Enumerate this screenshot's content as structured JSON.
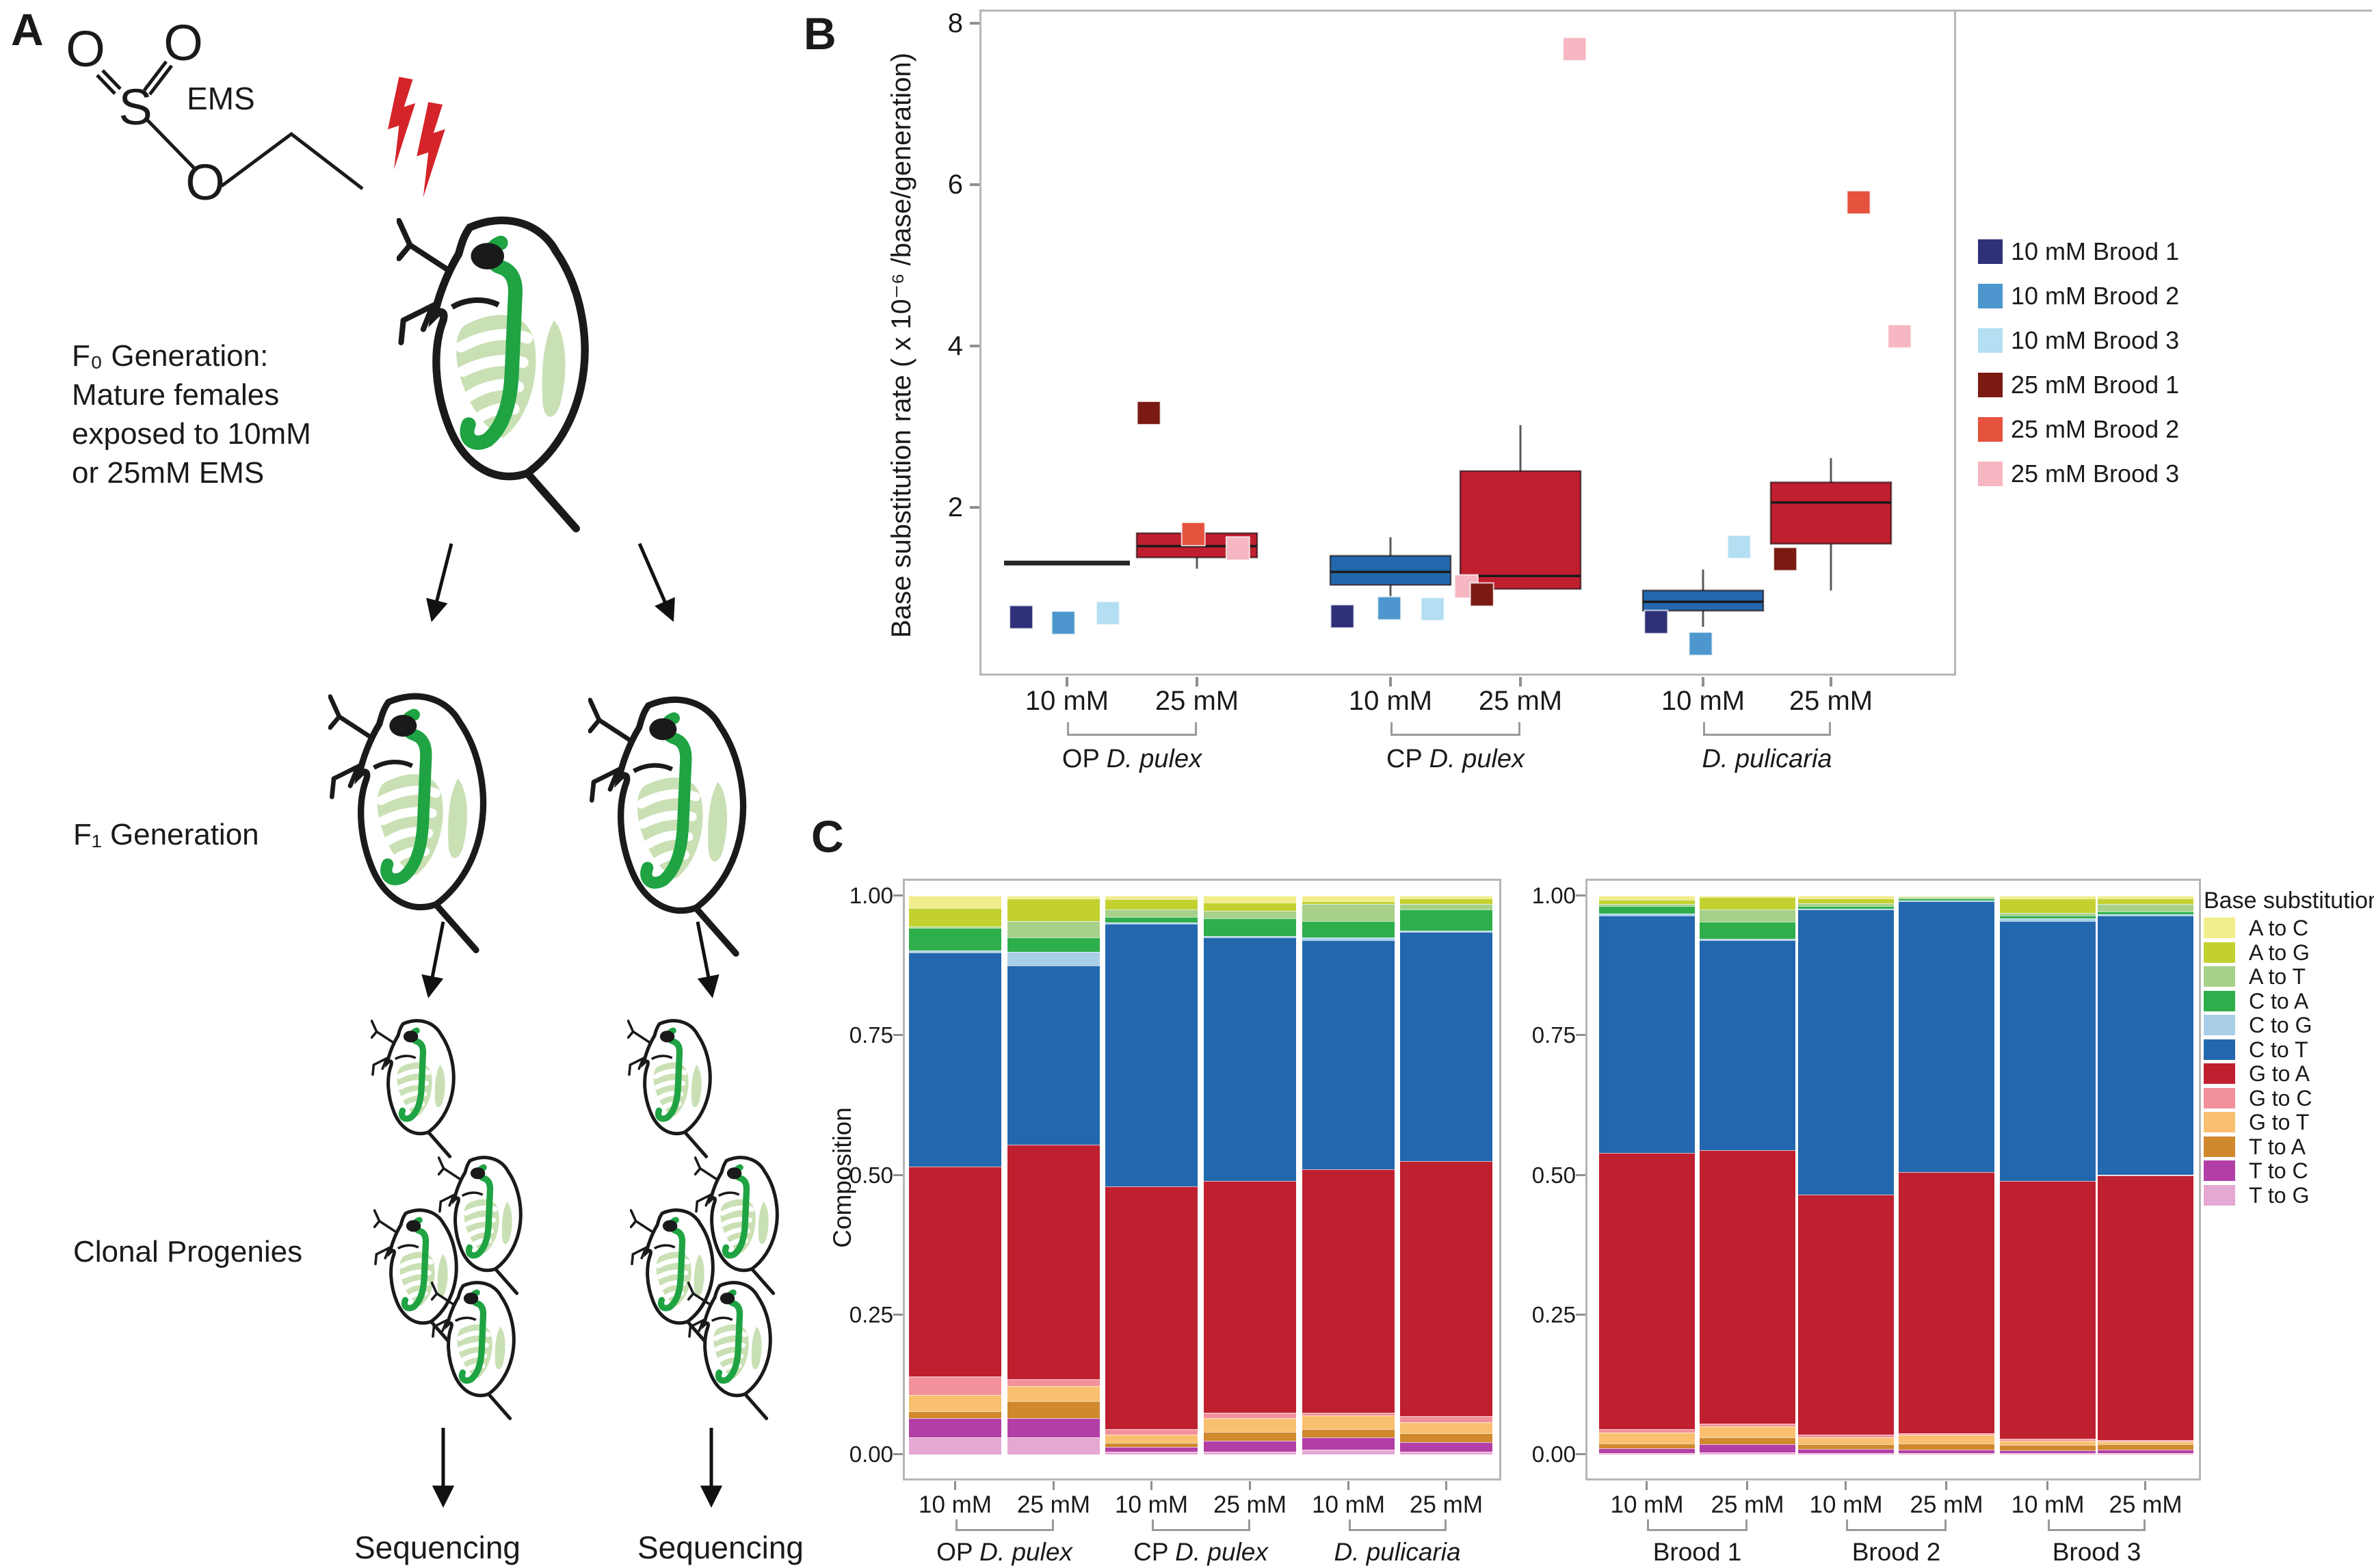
{
  "panelA": {
    "label": "A",
    "molecule": {
      "name": "EMS",
      "atoms": [
        "O",
        "O",
        "S",
        "O"
      ]
    },
    "f0_text_lines": [
      "F₀ Generation:",
      "Mature females",
      "exposed to 10mM",
      "or 25mM EMS"
    ],
    "f1_label": "F₁ Generation",
    "clonal_label": "Clonal Progenies",
    "sequencing_label": "Sequencing",
    "colors": {
      "outline": "#1a1a1a",
      "gut_green": "#1fa343",
      "gill_green": "#c9e0b4",
      "bolt_red": "#d42429"
    }
  },
  "panelB": {
    "label": "B"
  },
  "panelC": {
    "label": "C"
  },
  "legendC": {
    "title": "Base substitution",
    "entries": [
      {
        "label": "A to C",
        "color": "#f1ed8b"
      },
      {
        "label": "A to G",
        "color": "#c3d130"
      },
      {
        "label": "A to T",
        "color": "#a7d189"
      },
      {
        "label": "C to A",
        "color": "#2fae4c"
      },
      {
        "label": "C to G",
        "color": "#a9cfe8"
      },
      {
        "label": "C to T",
        "color": "#2368ae"
      },
      {
        "label": "G to A",
        "color": "#be2030"
      },
      {
        "label": "G to C",
        "color": "#f2919b"
      },
      {
        "label": "G to T",
        "color": "#f9c06f"
      },
      {
        "label": "T to A",
        "color": "#d0892d"
      },
      {
        "label": "T to C",
        "color": "#b23fa6"
      },
      {
        "label": "T to G",
        "color": "#e5a8d3"
      }
    ]
  },
  "chart_data": [
    {
      "id": "base_substitution_rate_boxplot",
      "type": "box",
      "panel": "B",
      "ylabel": "Base substitution rate ( x 10⁻⁶ /base/generation)",
      "ylim": [
        0,
        8
      ],
      "yticks": [
        2,
        4,
        6,
        8
      ],
      "grid": false,
      "legend_position": "right",
      "legend": [
        {
          "label": "10 mM Brood 1",
          "color": "#2e3178"
        },
        {
          "label": "10 mM Brood 2",
          "color": "#4d97ce"
        },
        {
          "label": "10 mM Brood 3",
          "color": "#b4dff2"
        },
        {
          "label": "25 mM Brood 1",
          "color": "#7a1a12"
        },
        {
          "label": "25 mM Brood 2",
          "color": "#e5523e"
        },
        {
          "label": "25 mM Brood 3",
          "color": "#f6b6c2"
        }
      ],
      "box_colors": {
        "10 mM": "#2368ae",
        "25 mM": "#bf1f2f"
      },
      "species": [
        {
          "prefix": "OP ",
          "italic": "D. pulex"
        },
        {
          "prefix": "CP ",
          "italic": "D. pulex"
        },
        {
          "prefix": "",
          "italic": "D. pulicaria"
        }
      ],
      "groups": [
        {
          "species": 0,
          "dose": "10 mM",
          "flat": 1.31,
          "points": [
            {
              "brood": "10 mM Brood 1",
              "value": 0.64,
              "dx": -0.38
            },
            {
              "brood": "10 mM Brood 2",
              "value": 0.57,
              "dx": -0.03
            },
            {
              "brood": "10 mM Brood 3",
              "value": 0.69,
              "dx": 0.34
            }
          ]
        },
        {
          "species": 0,
          "dose": "25 mM",
          "q1": 1.38,
          "median": 1.52,
          "q3": 1.68,
          "lo": 1.24,
          "hi": 1.79,
          "points": [
            {
              "brood": "25 mM Brood 1",
              "value": 3.17,
              "dx": -0.4
            },
            {
              "brood": "25 mM Brood 2",
              "value": 1.67,
              "dx": -0.03
            },
            {
              "brood": "25 mM Brood 3",
              "value": 1.49,
              "dx": 0.34
            }
          ]
        },
        {
          "species": 1,
          "dose": "10 mM",
          "q1": 1.04,
          "median": 1.2,
          "q3": 1.4,
          "lo": 0.89,
          "hi": 1.63,
          "points": [
            {
              "brood": "10 mM Brood 1",
              "value": 0.65,
              "dx": -0.4
            },
            {
              "brood": "10 mM Brood 2",
              "value": 0.75,
              "dx": -0.01
            },
            {
              "brood": "10 mM Brood 3",
              "value": 0.74,
              "dx": 0.35
            }
          ]
        },
        {
          "species": 1,
          "dose": "25 mM",
          "q1": 0.99,
          "median": 1.15,
          "q3": 2.45,
          "lo": 0.99,
          "hi": 3.02,
          "points": [
            {
              "brood": "25 mM Brood 3",
              "value": 1.02,
              "dx": -0.45
            },
            {
              "brood": "25 mM Brood 1",
              "value": 0.92,
              "dx": -0.32
            },
            {
              "brood": "25 mM Brood 3",
              "value": 7.68,
              "dx": 0.45
            }
          ]
        },
        {
          "species": 2,
          "dose": "10 mM",
          "q1": 0.72,
          "median": 0.83,
          "q3": 0.97,
          "lo": 0.52,
          "hi": 1.23,
          "points": [
            {
              "brood": "10 mM Brood 1",
              "value": 0.58,
              "dx": -0.39
            },
            {
              "brood": "10 mM Brood 2",
              "value": 0.31,
              "dx": -0.02
            },
            {
              "brood": "10 mM Brood 3",
              "value": 1.51,
              "dx": 0.3
            }
          ]
        },
        {
          "species": 2,
          "dose": "25 mM",
          "q1": 1.55,
          "median": 2.06,
          "q3": 2.31,
          "lo": 0.97,
          "hi": 2.61,
          "points": [
            {
              "brood": "25 mM Brood 1",
              "value": 1.36,
              "dx": -0.38
            },
            {
              "brood": "25 mM Brood 2",
              "value": 5.78,
              "dx": 0.23
            },
            {
              "brood": "25 mM Brood 3",
              "value": 4.12,
              "dx": 0.57
            }
          ]
        }
      ]
    },
    {
      "id": "composition_by_species",
      "type": "stacked_bar",
      "panel": "C-left",
      "ylabel": "Composition",
      "yticks": [
        "0.00",
        "0.25",
        "0.50",
        "0.75",
        "1.00"
      ],
      "stack_order_bottom_to_top": [
        "T to G",
        "T to C",
        "T to A",
        "G to T",
        "G to C",
        "G to A",
        "C to T",
        "C to G",
        "C to A",
        "A to T",
        "A to G",
        "A to C"
      ],
      "group_labels": [
        {
          "prefix": "OP ",
          "italic": "D. pulex"
        },
        {
          "prefix": "CP ",
          "italic": "D. pulex"
        },
        {
          "prefix": "",
          "italic": "D. pulicaria"
        }
      ],
      "bars": [
        {
          "group": 0,
          "dose": "10 mM",
          "values": {
            "T to G": 0.03,
            "T to C": 0.035,
            "T to A": 0.012,
            "G to T": 0.03,
            "G to C": 0.033,
            "G to A": 0.375,
            "C to T": 0.383,
            "C to G": 0.004,
            "C to A": 0.04,
            "A to T": 0.003,
            "A to G": 0.033,
            "A to C": 0.022
          }
        },
        {
          "group": 0,
          "dose": "25 mM",
          "values": {
            "T to G": 0.03,
            "T to C": 0.035,
            "T to A": 0.03,
            "G to T": 0.028,
            "G to C": 0.012,
            "G to A": 0.42,
            "C to T": 0.32,
            "C to G": 0.025,
            "C to A": 0.025,
            "A to T": 0.03,
            "A to G": 0.04,
            "A to C": 0.005
          }
        },
        {
          "group": 1,
          "dose": "10 mM",
          "values": {
            "T to G": 0.005,
            "T to C": 0.008,
            "T to A": 0.008,
            "G to T": 0.015,
            "G to C": 0.009,
            "G to A": 0.435,
            "C to T": 0.47,
            "C to G": 0.002,
            "C to A": 0.01,
            "A to T": 0.014,
            "A to G": 0.018,
            "A to C": 0.006
          }
        },
        {
          "group": 1,
          "dose": "25 mM",
          "values": {
            "T to G": 0.005,
            "T to C": 0.02,
            "T to A": 0.015,
            "G to T": 0.025,
            "G to C": 0.01,
            "G to A": 0.415,
            "C to T": 0.435,
            "C to G": 0.003,
            "C to A": 0.032,
            "A to T": 0.013,
            "A to G": 0.015,
            "A to C": 0.012
          }
        },
        {
          "group": 2,
          "dose": "10 mM",
          "values": {
            "T to G": 0.008,
            "T to C": 0.022,
            "T to A": 0.015,
            "G to T": 0.025,
            "G to C": 0.005,
            "G to A": 0.435,
            "C to T": 0.41,
            "C to G": 0.005,
            "C to A": 0.03,
            "A to T": 0.03,
            "A to G": 0.005,
            "A to C": 0.01
          }
        },
        {
          "group": 2,
          "dose": "25 mM",
          "values": {
            "T to G": 0.005,
            "T to C": 0.017,
            "T to A": 0.016,
            "G to T": 0.02,
            "G to C": 0.01,
            "G to A": 0.457,
            "C to T": 0.41,
            "C to G": 0.003,
            "C to A": 0.037,
            "A to T": 0.01,
            "A to G": 0.01,
            "A to C": 0.005
          }
        }
      ]
    },
    {
      "id": "composition_by_brood",
      "type": "stacked_bar",
      "panel": "C-right",
      "ylabel": "",
      "yticks": [
        "0.00",
        "0.25",
        "0.50",
        "0.75",
        "1.00"
      ],
      "stack_order_bottom_to_top": [
        "T to G",
        "T to C",
        "T to A",
        "G to T",
        "G to C",
        "G to A",
        "C to T",
        "C to G",
        "C to A",
        "A to T",
        "A to G",
        "A to C"
      ],
      "group_labels": [
        {
          "prefix": "Brood 1",
          "italic": ""
        },
        {
          "prefix": "Brood 2",
          "italic": ""
        },
        {
          "prefix": "Brood 3",
          "italic": ""
        }
      ],
      "bars": [
        {
          "group": 0,
          "dose": "10 mM",
          "values": {
            "T to G": 0.003,
            "T to C": 0.008,
            "T to A": 0.008,
            "G to T": 0.02,
            "G to C": 0.006,
            "G to A": 0.495,
            "C to T": 0.425,
            "C to G": 0.003,
            "C to A": 0.014,
            "A to T": 0.003,
            "A to G": 0.008,
            "A to C": 0.007
          }
        },
        {
          "group": 0,
          "dose": "25 mM",
          "values": {
            "T to G": 0.004,
            "T to C": 0.014,
            "T to A": 0.012,
            "G to T": 0.02,
            "G to C": 0.005,
            "G to A": 0.49,
            "C to T": 0.375,
            "C to G": 0.003,
            "C to A": 0.03,
            "A to T": 0.022,
            "A to G": 0.022,
            "A to C": 0.003
          }
        },
        {
          "group": 1,
          "dose": "10 mM",
          "values": {
            "T to G": 0.003,
            "T to C": 0.007,
            "T to A": 0.008,
            "G to T": 0.012,
            "G to C": 0.005,
            "G to A": 0.43,
            "C to T": 0.51,
            "C to G": 0.002,
            "C to A": 0.005,
            "A to T": 0.004,
            "A to G": 0.009,
            "A to C": 0.005
          }
        },
        {
          "group": 1,
          "dose": "25 mM",
          "values": {
            "T to G": 0.002,
            "T to C": 0.006,
            "T to A": 0.012,
            "G to T": 0.015,
            "G to C": 0.003,
            "G to A": 0.467,
            "C to T": 0.485,
            "C to G": 0.001,
            "C to A": 0.004,
            "A to T": 0.002,
            "A to G": 0.002,
            "A to C": 0.001
          }
        },
        {
          "group": 2,
          "dose": "10 mM",
          "values": {
            "T to G": 0.002,
            "T to C": 0.005,
            "T to A": 0.01,
            "G to T": 0.008,
            "G to C": 0.003,
            "G to A": 0.462,
            "C to T": 0.465,
            "C to G": 0.005,
            "C to A": 0.005,
            "A to T": 0.005,
            "A to G": 0.025,
            "A to C": 0.005
          }
        },
        {
          "group": 2,
          "dose": "25 mM",
          "values": {
            "T to G": 0.003,
            "T to C": 0.005,
            "T to A": 0.01,
            "G to T": 0.005,
            "G to C": 0.003,
            "G to A": 0.474,
            "C to T": 0.465,
            "C to G": 0.002,
            "C to A": 0.005,
            "A to T": 0.013,
            "A to G": 0.01,
            "A to C": 0.005
          }
        }
      ]
    }
  ]
}
